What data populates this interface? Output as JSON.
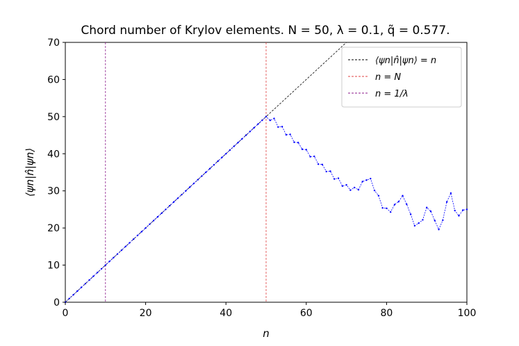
{
  "chart_data": {
    "type": "line",
    "title": "Chord number of Krylov elements. N = 50, λ = 0.1, q̃ = 0.577.",
    "xlabel": "n",
    "ylabel": "⟨ψn|n̂|ψn⟩",
    "xlim": [
      0,
      100
    ],
    "ylim": [
      0,
      70
    ],
    "xticks": [
      0,
      20,
      40,
      60,
      80,
      100
    ],
    "yticks": [
      0,
      10,
      20,
      30,
      40,
      50,
      60,
      70
    ],
    "grid": false,
    "legend_position": "top-right",
    "legend": [
      "⟨ψn|n̂|ψn⟩ = n",
      "n = N",
      "n = 1/λ"
    ],
    "reference_lines": [
      {
        "type": "line",
        "label": "⟨ψn|n̂|ψn⟩ = n",
        "x": [
          0,
          70
        ],
        "y": [
          0,
          70
        ],
        "color": "#000000",
        "dash": true
      },
      {
        "type": "vertical",
        "label": "n = N",
        "x": 50,
        "color": "#e04040",
        "dash": true
      },
      {
        "type": "vertical",
        "label": "n = 1/λ",
        "x": 10,
        "color": "#8b1a8b",
        "dash": true
      }
    ],
    "series": [
      {
        "color": "#0000ff",
        "marker": "dot",
        "x": [
          0,
          1,
          2,
          3,
          4,
          5,
          6,
          7,
          8,
          9,
          10,
          11,
          12,
          13,
          14,
          15,
          16,
          17,
          18,
          19,
          20,
          21,
          22,
          23,
          24,
          25,
          26,
          27,
          28,
          29,
          30,
          31,
          32,
          33,
          34,
          35,
          36,
          37,
          38,
          39,
          40,
          41,
          42,
          43,
          44,
          45,
          46,
          47,
          48,
          49,
          50,
          51,
          52,
          53,
          54,
          55,
          56,
          57,
          58,
          59,
          60,
          61,
          62,
          63,
          64,
          65,
          66,
          67,
          68,
          69,
          70,
          71,
          72,
          73,
          74,
          75,
          76,
          77,
          78,
          79,
          80,
          81,
          82,
          83,
          84,
          85,
          86,
          87,
          88,
          89,
          90,
          91,
          92,
          93,
          94,
          95,
          96,
          97,
          98,
          99,
          100
        ],
        "y": [
          0,
          1,
          2,
          3,
          4,
          5,
          6,
          7,
          8,
          9,
          10,
          11,
          12,
          13,
          14,
          15,
          16,
          17,
          18,
          19,
          20,
          21,
          22,
          23,
          24,
          25,
          26,
          27,
          28,
          29,
          30,
          31,
          32,
          33,
          34,
          35,
          36,
          37,
          38,
          39,
          40,
          41,
          42,
          43,
          44,
          45,
          46,
          47,
          48,
          49,
          50,
          49,
          49.5,
          47.2,
          47.3,
          45.1,
          45.2,
          43.1,
          43.0,
          41.2,
          41.1,
          39.2,
          39.3,
          37.2,
          37.1,
          35.2,
          35.3,
          33.2,
          33.4,
          31.3,
          31.6,
          30.2,
          30.9,
          30.3,
          32.5,
          32.9,
          33.3,
          30.1,
          28.7,
          25.4,
          25.3,
          24.3,
          26.3,
          27.1,
          28.7,
          26.4,
          23.7,
          20.6,
          21.3,
          22.2,
          25.5,
          24.5,
          22.0,
          19.6,
          22.1,
          27.0,
          29.4,
          24.7,
          23.3,
          24.8,
          25.0
        ]
      }
    ]
  }
}
